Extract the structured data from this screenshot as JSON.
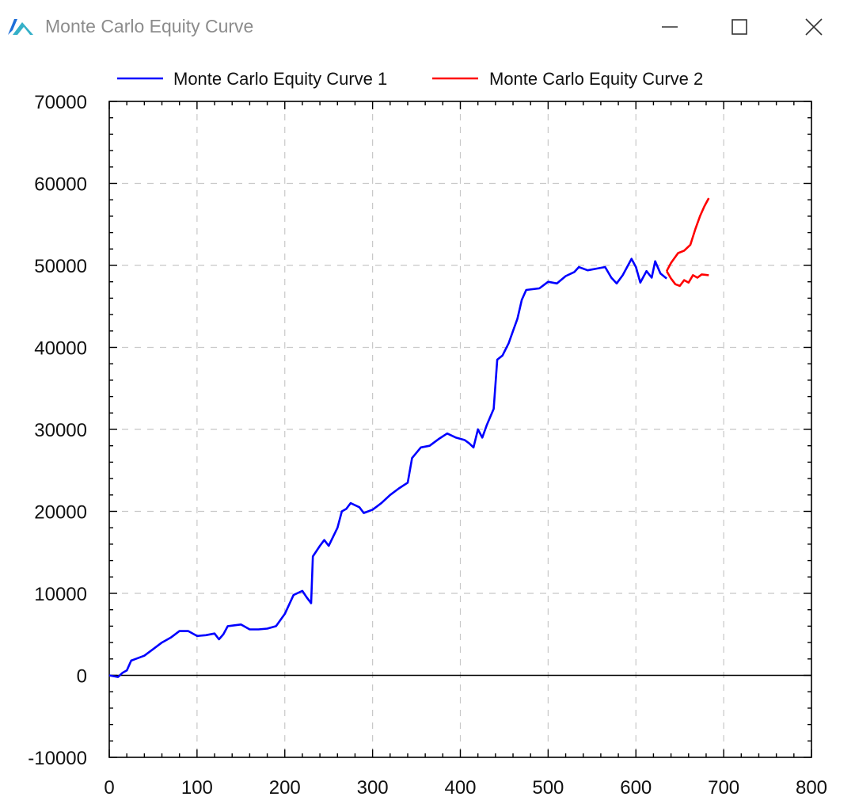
{
  "window": {
    "title": "Monte Carlo Equity Curve",
    "icon": "app-logo-icon",
    "controls": [
      "minimize-icon",
      "maximize-icon",
      "close-icon"
    ]
  },
  "chart_data": {
    "type": "line",
    "title": "",
    "xlabel": "",
    "ylabel": "",
    "xlim": [
      0,
      800
    ],
    "ylim": [
      -10000,
      70000
    ],
    "x_ticks": [
      0,
      100,
      200,
      300,
      400,
      500,
      600,
      700,
      800
    ],
    "y_ticks": [
      -10000,
      0,
      10000,
      20000,
      30000,
      40000,
      50000,
      60000,
      70000
    ],
    "grid": true,
    "legend_position": "top",
    "series": [
      {
        "name": "Monte Carlo Equity Curve 1",
        "color": "#0000ff",
        "points": [
          [
            0,
            0
          ],
          [
            10,
            -200
          ],
          [
            15,
            300
          ],
          [
            20,
            600
          ],
          [
            25,
            1800
          ],
          [
            30,
            2000
          ],
          [
            40,
            2400
          ],
          [
            50,
            3200
          ],
          [
            60,
            4000
          ],
          [
            70,
            4600
          ],
          [
            80,
            5400
          ],
          [
            90,
            5400
          ],
          [
            100,
            4800
          ],
          [
            110,
            4900
          ],
          [
            120,
            5100
          ],
          [
            125,
            4400
          ],
          [
            130,
            5000
          ],
          [
            135,
            6000
          ],
          [
            150,
            6200
          ],
          [
            160,
            5600
          ],
          [
            170,
            5600
          ],
          [
            180,
            5700
          ],
          [
            190,
            6000
          ],
          [
            200,
            7500
          ],
          [
            210,
            9800
          ],
          [
            220,
            10300
          ],
          [
            225,
            9500
          ],
          [
            230,
            8800
          ],
          [
            232,
            14500
          ],
          [
            240,
            15800
          ],
          [
            245,
            16500
          ],
          [
            250,
            15800
          ],
          [
            260,
            18000
          ],
          [
            265,
            20000
          ],
          [
            270,
            20300
          ],
          [
            275,
            21000
          ],
          [
            285,
            20500
          ],
          [
            290,
            19800
          ],
          [
            300,
            20200
          ],
          [
            310,
            21000
          ],
          [
            320,
            22000
          ],
          [
            330,
            22800
          ],
          [
            340,
            23500
          ],
          [
            345,
            26500
          ],
          [
            355,
            27800
          ],
          [
            365,
            28000
          ],
          [
            375,
            28800
          ],
          [
            385,
            29500
          ],
          [
            395,
            29000
          ],
          [
            405,
            28700
          ],
          [
            410,
            28300
          ],
          [
            415,
            27800
          ],
          [
            420,
            30000
          ],
          [
            425,
            29000
          ],
          [
            430,
            30500
          ],
          [
            438,
            32500
          ],
          [
            442,
            38500
          ],
          [
            448,
            39000
          ],
          [
            455,
            40500
          ],
          [
            460,
            42000
          ],
          [
            465,
            43500
          ],
          [
            470,
            45800
          ],
          [
            475,
            47000
          ],
          [
            490,
            47200
          ],
          [
            500,
            48000
          ],
          [
            510,
            47800
          ],
          [
            520,
            48700
          ],
          [
            530,
            49200
          ],
          [
            535,
            49800
          ],
          [
            545,
            49400
          ],
          [
            555,
            49600
          ],
          [
            565,
            49800
          ],
          [
            572,
            48500
          ],
          [
            578,
            47800
          ],
          [
            585,
            48800
          ],
          [
            595,
            50800
          ],
          [
            600,
            49800
          ],
          [
            605,
            47900
          ],
          [
            612,
            49300
          ],
          [
            618,
            48500
          ],
          [
            622,
            50500
          ],
          [
            628,
            49000
          ],
          [
            635,
            48400
          ]
        ]
      },
      {
        "name": "Monte Carlo Equity Curve 2",
        "color": "#ff0000",
        "segments": [
          [
            [
              635,
              49300
            ],
            [
              640,
              50300
            ],
            [
              648,
              51500
            ],
            [
              655,
              51800
            ],
            [
              662,
              52500
            ],
            [
              668,
              54500
            ],
            [
              673,
              56000
            ],
            [
              678,
              57200
            ],
            [
              683,
              58200
            ]
          ],
          [
            [
              635,
              49300
            ],
            [
              640,
              48400
            ],
            [
              645,
              47700
            ],
            [
              650,
              47500
            ],
            [
              655,
              48200
            ],
            [
              660,
              47900
            ],
            [
              665,
              48800
            ],
            [
              670,
              48500
            ],
            [
              675,
              48900
            ],
            [
              683,
              48800
            ]
          ]
        ]
      }
    ]
  }
}
